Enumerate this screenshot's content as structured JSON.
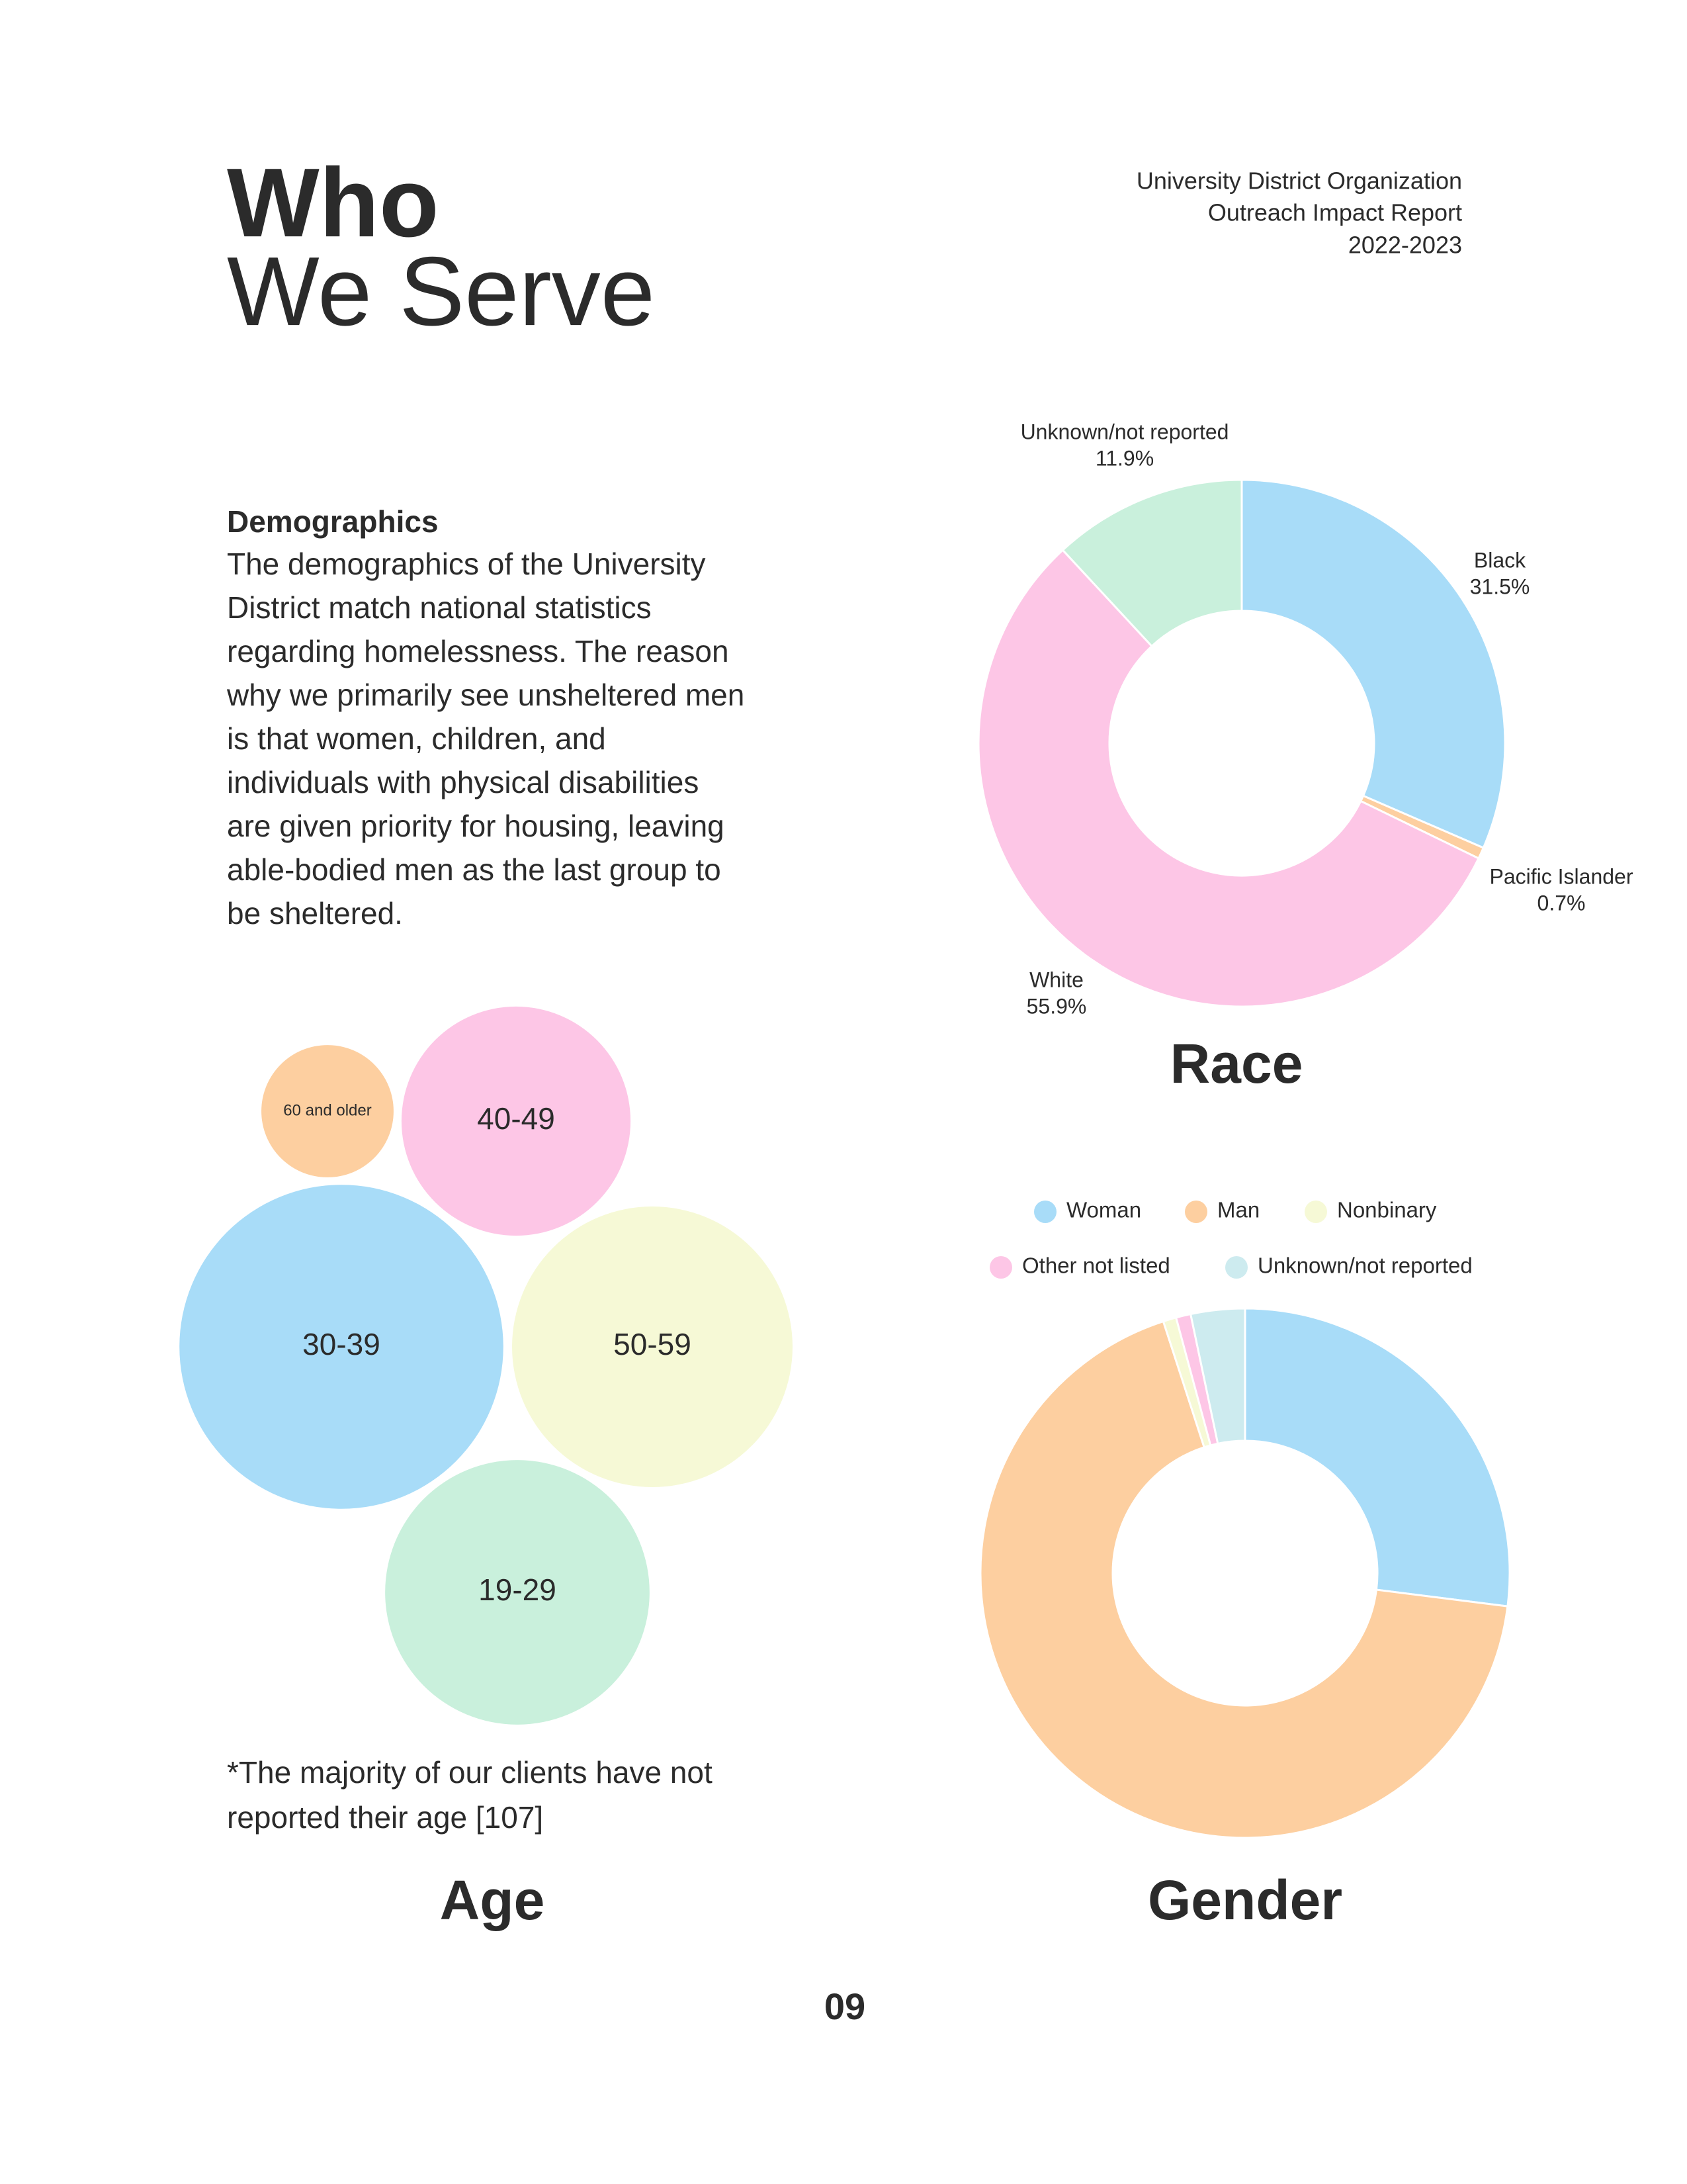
{
  "header": {
    "title_line1": "Who",
    "title_line2": "We Serve",
    "org_lines": [
      "University District Organization",
      "Outreach Impact Report",
      "2022-2023"
    ]
  },
  "body": {
    "heading": "Demographics",
    "lines": [
      "The demographics of the University",
      "District match national statistics",
      "regarding homelessness. The reason",
      "why we primarily see unsheltered men",
      "is that women, children, and",
      "individuals with physical disabilities",
      "are given priority for housing, leaving",
      "able-bodied men as the last group to",
      "be sheltered."
    ],
    "note_lines": [
      "*The majority of our clients have not",
      "reported their age [107]"
    ]
  },
  "page_number": "09",
  "chart_data": [
    {
      "type": "donut",
      "title": "Race",
      "categories": [
        "Black",
        "Pacific Islander",
        "White",
        "Unknown/not reported"
      ],
      "values": [
        31.5,
        0.7,
        55.9,
        11.9
      ],
      "value_labels": [
        "31.5%",
        "0.7%",
        "55.9%",
        "11.9%"
      ],
      "colors": [
        "#a8dcf8",
        "#fdcfa0",
        "#fdc6e6",
        "#c9f0dc"
      ]
    },
    {
      "type": "donut",
      "title": "Gender",
      "legend": "top",
      "categories": [
        "Woman",
        "Man",
        "Nonbinary",
        "Other not listed",
        "Unknown/not reported"
      ],
      "values": [
        27,
        68,
        0.8,
        0.9,
        3.3
      ],
      "colors": [
        "#a8dcf8",
        "#fdcfa0",
        "#f6f9d6",
        "#fdc6e6",
        "#cdebef"
      ]
    },
    {
      "type": "bubble",
      "title": "Age",
      "categories": [
        "60 and older",
        "40-49",
        "30-39",
        "50-59",
        "19-29"
      ],
      "values": [
        10,
        30,
        60,
        45,
        40
      ],
      "colors": [
        "#fdcfa0",
        "#fdc6e6",
        "#a8dcf8",
        "#f6f9d6",
        "#c9f0dc"
      ]
    }
  ]
}
